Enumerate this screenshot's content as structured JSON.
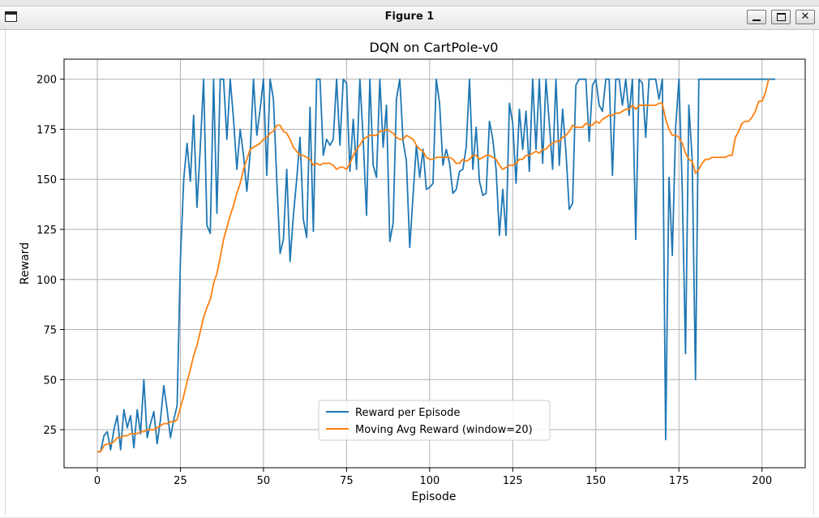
{
  "window": {
    "title": "Figure 1"
  },
  "chart_data": {
    "type": "line",
    "title": "DQN on CartPole-v0",
    "xlabel": "Episode",
    "ylabel": "Reward",
    "xlim": [
      -10,
      213
    ],
    "ylim": [
      6,
      210
    ],
    "xticks": [
      0,
      25,
      50,
      75,
      100,
      125,
      150,
      175,
      200
    ],
    "yticks": [
      25,
      50,
      75,
      100,
      125,
      150,
      175,
      200
    ],
    "grid": true,
    "legend_position": "lower-center",
    "series": [
      {
        "name": "Reward per Episode",
        "color": "#1f77b4",
        "values": [
          14,
          14,
          22,
          24,
          15,
          25,
          32,
          15,
          35,
          26,
          32,
          16,
          35,
          23,
          50,
          21,
          28,
          34,
          18,
          30,
          47,
          35,
          21,
          30,
          37,
          110,
          150,
          168,
          149,
          182,
          136,
          166,
          200,
          127,
          123,
          200,
          133,
          200,
          200,
          170,
          200,
          180,
          155,
          175,
          162,
          144,
          163,
          200,
          172,
          185,
          200,
          152,
          200,
          190,
          150,
          113,
          120,
          155,
          109,
          132,
          150,
          171,
          130,
          121,
          186,
          124,
          200,
          200,
          162,
          170,
          167,
          170,
          200,
          167,
          200,
          198,
          154,
          180,
          155,
          200,
          170,
          132,
          200,
          157,
          151,
          200,
          166,
          187,
          119,
          128,
          190,
          200,
          169,
          159,
          116,
          142,
          167,
          151,
          165,
          145,
          146,
          148,
          200,
          188,
          157,
          165,
          158,
          143,
          145,
          154,
          155,
          166,
          200,
          155,
          176,
          149,
          142,
          143,
          179,
          170,
          155,
          122,
          145,
          122,
          188,
          178,
          148,
          185,
          165,
          184,
          154,
          200,
          165,
          200,
          158,
          200,
          178,
          155,
          200,
          157,
          185,
          164,
          135,
          138,
          197,
          200,
          200,
          200,
          169,
          197,
          200,
          187,
          184,
          200,
          200,
          152,
          200,
          200,
          187,
          200,
          182,
          200,
          120,
          200,
          198,
          171,
          200,
          200,
          200,
          190,
          200,
          20,
          151,
          112,
          176,
          200,
          146,
          63,
          187,
          160,
          50,
          200,
          200,
          200,
          200,
          200,
          200,
          200,
          200,
          200,
          200,
          200,
          200,
          200,
          200,
          200,
          200,
          200,
          200,
          200,
          200,
          200,
          200,
          200,
          200
        ]
      },
      {
        "name": "Moving Avg Reward (window=20)",
        "color": "#ff7f0e",
        "values": [
          14,
          14,
          17,
          18,
          18,
          19,
          21,
          21,
          22,
          22,
          23,
          23,
          23,
          24,
          24,
          25,
          25,
          25,
          26,
          27,
          28,
          28,
          29,
          29,
          30,
          36,
          42,
          49,
          55,
          62,
          67,
          74,
          81,
          86,
          90,
          98,
          103,
          111,
          120,
          126,
          132,
          137,
          143,
          148,
          155,
          160,
          165,
          166,
          167,
          168,
          170,
          171,
          173,
          174,
          177,
          177,
          174,
          173,
          170,
          166,
          164,
          162,
          162,
          161,
          160,
          157,
          158,
          157,
          158,
          158,
          158,
          157,
          155,
          156,
          156,
          155,
          158,
          162,
          165,
          167,
          170,
          171,
          172,
          172,
          172,
          174,
          174,
          175,
          174,
          173,
          171,
          170,
          170,
          172,
          171,
          170,
          167,
          165,
          164,
          161,
          160,
          160,
          161,
          161,
          161,
          161,
          161,
          160,
          158,
          158,
          160,
          159,
          160,
          162,
          162,
          160,
          161,
          162,
          162,
          161,
          160,
          157,
          155,
          156,
          157,
          157,
          158,
          160,
          160,
          162,
          162,
          163,
          164,
          163,
          165,
          165,
          167,
          168,
          169,
          169,
          171,
          172,
          174,
          177,
          176,
          176,
          176,
          178,
          177,
          177,
          179,
          178,
          180,
          181,
          182,
          182,
          183,
          183,
          184,
          185,
          185,
          187,
          185,
          187,
          187,
          187,
          187,
          187,
          187,
          188,
          188,
          180,
          175,
          172,
          172,
          171,
          168,
          163,
          160,
          159,
          153,
          155,
          158,
          160,
          160,
          161,
          161,
          161,
          161,
          161,
          162,
          162,
          171,
          174,
          178,
          179,
          179,
          181,
          184,
          189,
          189,
          193,
          200
        ]
      }
    ]
  }
}
